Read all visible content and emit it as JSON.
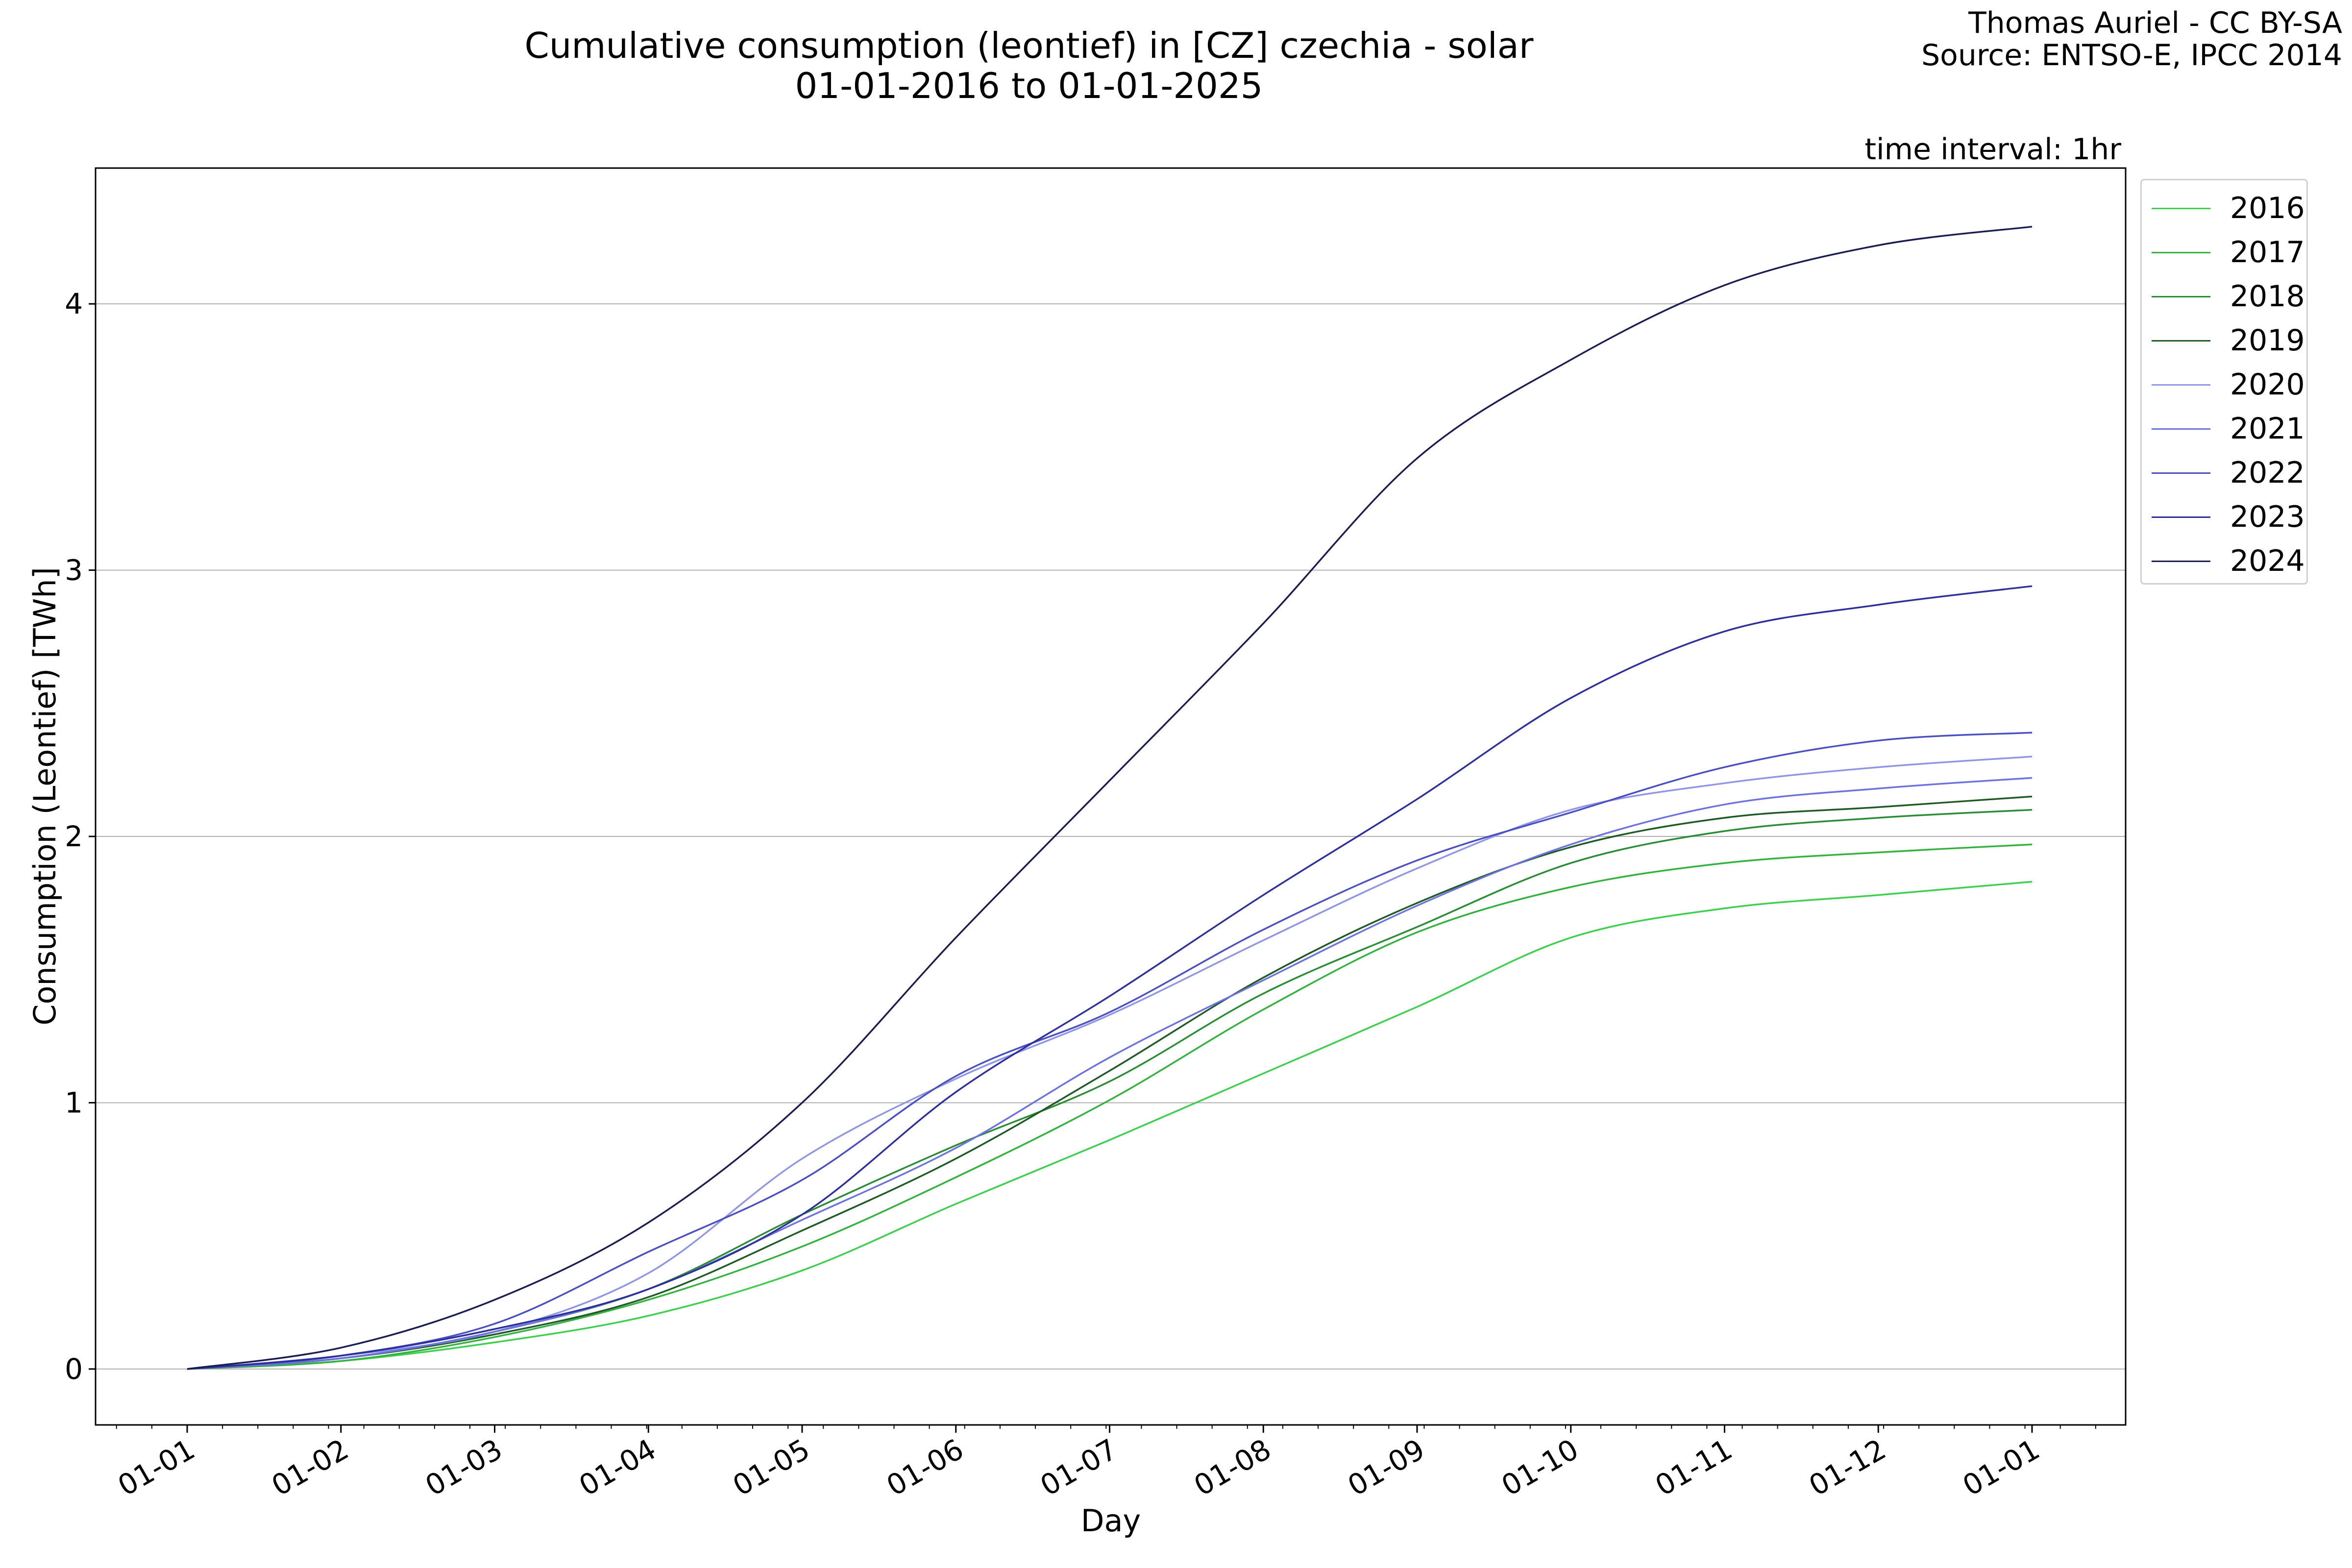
{
  "header": {
    "title_line1": "Cumulative consumption (leontief) in [CZ] czechia - solar",
    "title_line2": "01-01-2016 to 01-01-2025",
    "credit_line1": "Thomas Auriel - CC BY-SA",
    "credit_line2": "Source: ENTSO-E, IPCC 2014",
    "interval_note": "time interval: 1hr"
  },
  "chart_data": {
    "type": "line",
    "title": "Cumulative consumption (leontief) in [CZ] czechia - solar",
    "subtitle": "01-01-2016 to 01-01-2025",
    "xlabel": "Day",
    "ylabel": "Consumption (Leontief) [TWh]",
    "x_tick_labels": [
      "01-01",
      "01-02",
      "01-03",
      "01-04",
      "01-05",
      "01-06",
      "01-07",
      "01-08",
      "01-09",
      "01-10",
      "01-11",
      "01-12",
      "01-01"
    ],
    "y_ticks": [
      0,
      1,
      2,
      3,
      4
    ],
    "ylim": [
      -0.21,
      4.51
    ],
    "grid": "horizontal",
    "legend_position": "outside-right",
    "x": [
      "01-01",
      "01-02",
      "01-03",
      "01-04",
      "01-05",
      "01-06",
      "01-07",
      "01-08",
      "01-09",
      "01-10",
      "01-11",
      "01-12",
      "01-01"
    ],
    "series": [
      {
        "name": "2016",
        "color": "#3fcf4f",
        "values": [
          0,
          0.03,
          0.1,
          0.2,
          0.37,
          0.62,
          0.86,
          1.11,
          1.36,
          1.62,
          1.73,
          1.78,
          1.83
        ]
      },
      {
        "name": "2017",
        "color": "#33b23f",
        "values": [
          0,
          0.03,
          0.12,
          0.26,
          0.46,
          0.72,
          1.01,
          1.35,
          1.64,
          1.81,
          1.9,
          1.94,
          1.97
        ]
      },
      {
        "name": "2018",
        "color": "#2a8c34",
        "values": [
          0,
          0.04,
          0.14,
          0.3,
          0.58,
          0.84,
          1.08,
          1.41,
          1.66,
          1.9,
          2.02,
          2.07,
          2.1
        ]
      },
      {
        "name": "2019",
        "color": "#1e5a24",
        "values": [
          0,
          0.04,
          0.13,
          0.27,
          0.52,
          0.79,
          1.12,
          1.47,
          1.75,
          1.96,
          2.07,
          2.11,
          2.15
        ]
      },
      {
        "name": "2020",
        "color": "#8f96e6",
        "values": [
          0,
          0.05,
          0.14,
          0.36,
          0.79,
          1.09,
          1.33,
          1.61,
          1.88,
          2.1,
          2.2,
          2.26,
          2.3
        ]
      },
      {
        "name": "2021",
        "color": "#6c73e0",
        "values": [
          0,
          0.04,
          0.14,
          0.3,
          0.56,
          0.83,
          1.17,
          1.46,
          1.74,
          1.97,
          2.12,
          2.18,
          2.22
        ]
      },
      {
        "name": "2022",
        "color": "#4a50c4",
        "values": [
          0,
          0.05,
          0.17,
          0.44,
          0.71,
          1.1,
          1.34,
          1.65,
          1.91,
          2.09,
          2.26,
          2.36,
          2.39
        ]
      },
      {
        "name": "2023",
        "color": "#2c2f9c",
        "values": [
          0,
          0.05,
          0.15,
          0.3,
          0.58,
          1.04,
          1.4,
          1.78,
          2.14,
          2.52,
          2.77,
          2.87,
          2.94
        ]
      },
      {
        "name": "2024",
        "color": "#1b1d52",
        "values": [
          0,
          0.08,
          0.26,
          0.55,
          1.0,
          1.62,
          2.21,
          2.8,
          3.42,
          3.79,
          4.07,
          4.22,
          4.29
        ]
      }
    ]
  }
}
